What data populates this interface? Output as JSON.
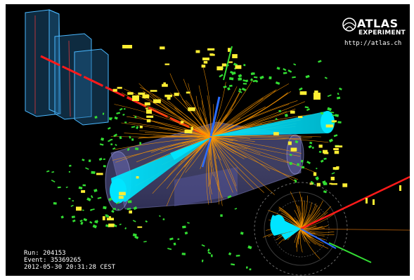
{
  "logo": {
    "title": "ATLAS",
    "subtitle": "EXPERIMENT",
    "url": "http://atlas.ch",
    "icon": "atlas-globe-icon"
  },
  "event_info": {
    "run": "Run: 204153",
    "event": "Event: 35369265",
    "datetime": "2012-05-30 20:31:28 CEST"
  },
  "colors": {
    "background": "#000000",
    "tracks": "#ff9900",
    "calorimeter_blocks": "#00e5ff",
    "muon_line": "#ff1a1a",
    "electron_track": "#2a6cff",
    "hits_green": "#33dd33",
    "hits_yellow": "#ffee33",
    "detector_barrel": "#7a7ad0",
    "towers": "#4ab8ff"
  }
}
